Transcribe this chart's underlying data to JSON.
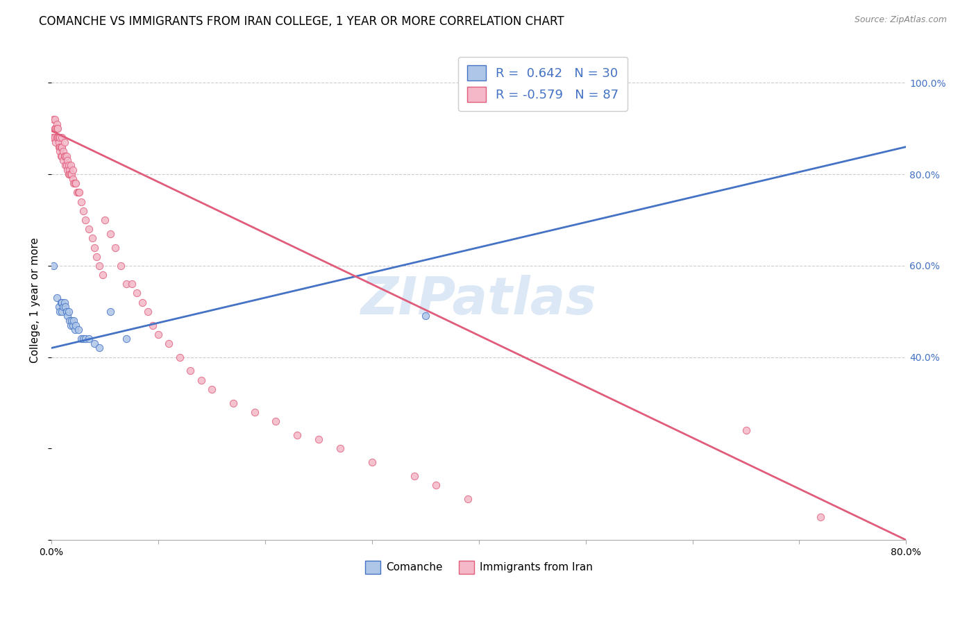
{
  "title": "COMANCHE VS IMMIGRANTS FROM IRAN COLLEGE, 1 YEAR OR MORE CORRELATION CHART",
  "source": "Source: ZipAtlas.com",
  "ylabel": "College, 1 year or more",
  "legend_label1": "R =  0.642   N = 30",
  "legend_label2": "R = -0.579   N = 87",
  "watermark": "ZIPatlas",
  "xlim": [
    0.0,
    0.8
  ],
  "ylim": [
    0.0,
    1.05
  ],
  "x_ticks": [
    0.0,
    0.1,
    0.2,
    0.3,
    0.4,
    0.5,
    0.6,
    0.7,
    0.8
  ],
  "x_tick_labels": [
    "0.0%",
    "",
    "",
    "",
    "",
    "",
    "",
    "",
    "80.0%"
  ],
  "y_ticks_right": [
    0.4,
    0.6,
    0.8,
    1.0
  ],
  "y_tick_labels_right": [
    "40.0%",
    "60.0%",
    "80.0%",
    "100.0%"
  ],
  "blue_scatter_x": [
    0.002,
    0.005,
    0.007,
    0.008,
    0.009,
    0.01,
    0.01,
    0.011,
    0.012,
    0.013,
    0.014,
    0.015,
    0.016,
    0.017,
    0.018,
    0.019,
    0.02,
    0.021,
    0.022,
    0.023,
    0.025,
    0.028,
    0.03,
    0.032,
    0.035,
    0.04,
    0.045,
    0.055,
    0.07,
    0.35
  ],
  "blue_scatter_y": [
    0.6,
    0.53,
    0.51,
    0.5,
    0.52,
    0.5,
    0.52,
    0.51,
    0.52,
    0.51,
    0.5,
    0.49,
    0.5,
    0.48,
    0.47,
    0.48,
    0.47,
    0.48,
    0.46,
    0.47,
    0.46,
    0.44,
    0.44,
    0.44,
    0.44,
    0.43,
    0.42,
    0.5,
    0.44,
    0.49
  ],
  "pink_scatter_x": [
    0.001,
    0.002,
    0.002,
    0.003,
    0.003,
    0.003,
    0.004,
    0.004,
    0.005,
    0.005,
    0.005,
    0.006,
    0.006,
    0.006,
    0.007,
    0.007,
    0.007,
    0.008,
    0.008,
    0.008,
    0.009,
    0.009,
    0.01,
    0.01,
    0.01,
    0.011,
    0.011,
    0.012,
    0.012,
    0.013,
    0.013,
    0.014,
    0.014,
    0.015,
    0.015,
    0.016,
    0.016,
    0.017,
    0.017,
    0.018,
    0.018,
    0.019,
    0.02,
    0.02,
    0.021,
    0.022,
    0.023,
    0.024,
    0.025,
    0.026,
    0.028,
    0.03,
    0.032,
    0.035,
    0.038,
    0.04,
    0.042,
    0.045,
    0.048,
    0.05,
    0.055,
    0.06,
    0.065,
    0.07,
    0.075,
    0.08,
    0.085,
    0.09,
    0.095,
    0.1,
    0.11,
    0.12,
    0.13,
    0.14,
    0.15,
    0.17,
    0.19,
    0.21,
    0.23,
    0.25,
    0.27,
    0.3,
    0.34,
    0.36,
    0.39,
    0.65,
    0.72
  ],
  "pink_scatter_y": [
    0.88,
    0.92,
    0.88,
    0.92,
    0.88,
    0.9,
    0.87,
    0.9,
    0.91,
    0.88,
    0.9,
    0.88,
    0.9,
    0.88,
    0.86,
    0.88,
    0.87,
    0.86,
    0.88,
    0.85,
    0.86,
    0.84,
    0.86,
    0.84,
    0.88,
    0.85,
    0.83,
    0.84,
    0.87,
    0.84,
    0.82,
    0.84,
    0.82,
    0.83,
    0.81,
    0.82,
    0.8,
    0.81,
    0.8,
    0.8,
    0.82,
    0.8,
    0.79,
    0.81,
    0.78,
    0.78,
    0.78,
    0.76,
    0.76,
    0.76,
    0.74,
    0.72,
    0.7,
    0.68,
    0.66,
    0.64,
    0.62,
    0.6,
    0.58,
    0.7,
    0.67,
    0.64,
    0.6,
    0.56,
    0.56,
    0.54,
    0.52,
    0.5,
    0.47,
    0.45,
    0.43,
    0.4,
    0.37,
    0.35,
    0.33,
    0.3,
    0.28,
    0.26,
    0.23,
    0.22,
    0.2,
    0.17,
    0.14,
    0.12,
    0.09,
    0.24,
    0.05
  ],
  "blue_line_x": [
    0.0,
    0.8
  ],
  "blue_line_y": [
    0.42,
    0.86
  ],
  "pink_line_x": [
    0.0,
    0.8
  ],
  "pink_line_y": [
    0.895,
    0.0
  ],
  "blue_color": "#aec6e8",
  "blue_line_color": "#4472c4",
  "pink_color": "#f4b8c8",
  "pink_line_color": "#e05c7a",
  "scatter_size": 55,
  "scatter_alpha": 0.85,
  "background_color": "#ffffff",
  "grid_color": "#cccccc",
  "watermark_color": "#dce8f5",
  "title_fontsize": 12,
  "axis_label_fontsize": 11,
  "tick_fontsize": 10,
  "legend_fontsize": 13
}
